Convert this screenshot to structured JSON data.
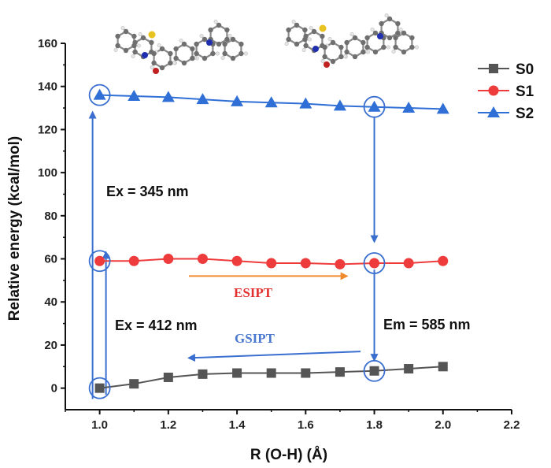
{
  "chart_data": {
    "type": "line",
    "title": "",
    "xlabel": "R (O-H) (Å)",
    "ylabel": "Relative energy (kcal/mol)",
    "xlim": [
      0.9,
      2.2
    ],
    "ylim": [
      -10,
      160
    ],
    "x_ticks": [
      1.0,
      1.2,
      1.4,
      1.6,
      1.8,
      2.0,
      2.2
    ],
    "x_tick_labels": [
      "1.0",
      "1.2",
      "1.4",
      "1.6",
      "1.8",
      "2.0",
      "2.2"
    ],
    "y_ticks": [
      0,
      20,
      40,
      60,
      80,
      100,
      120,
      140,
      160
    ],
    "y_tick_labels": [
      "0",
      "20",
      "40",
      "60",
      "80",
      "100",
      "120",
      "140",
      "160"
    ],
    "legend_position": "top-right",
    "series": [
      {
        "name": "S0",
        "color": "#555555",
        "marker": "square",
        "x": [
          1.0,
          1.1,
          1.2,
          1.3,
          1.4,
          1.5,
          1.6,
          1.7,
          1.8,
          1.9,
          2.0
        ],
        "values": [
          0,
          2,
          5,
          6.5,
          7,
          7,
          7,
          7.5,
          8,
          9,
          10
        ]
      },
      {
        "name": "S1",
        "color": "#ee3b3b",
        "marker": "circle",
        "x": [
          1.0,
          1.1,
          1.2,
          1.3,
          1.4,
          1.5,
          1.6,
          1.7,
          1.8,
          1.9,
          2.0
        ],
        "values": [
          59,
          59,
          60,
          60,
          59,
          58,
          58,
          57.5,
          58,
          58,
          59
        ]
      },
      {
        "name": "S2",
        "color": "#2f6fd6",
        "marker": "triangle",
        "x": [
          1.0,
          1.1,
          1.2,
          1.3,
          1.4,
          1.5,
          1.6,
          1.7,
          1.8,
          1.9,
          2.0
        ],
        "values": [
          136,
          135.5,
          135,
          134,
          133,
          132.5,
          132,
          131,
          130.5,
          130,
          129.5
        ]
      }
    ],
    "annotations": {
      "ex345": "Ex = 345 nm",
      "ex412": "Ex = 412 nm",
      "em585": "Em = 585 nm",
      "esipt": "ESIPT",
      "gsipt": "GSIPT"
    },
    "highlight_points": [
      {
        "x": 1.0,
        "y": 0
      },
      {
        "x": 1.0,
        "y": 59
      },
      {
        "x": 1.0,
        "y": 136
      },
      {
        "x": 1.8,
        "y": 58
      },
      {
        "x": 1.8,
        "y": 130.5
      },
      {
        "x": 1.8,
        "y": 8
      }
    ],
    "annotation_colors": {
      "arrow_blue": "#3a6fd0",
      "arrow_orange": "#f08a2c",
      "esipt_text": "#e2302f",
      "gsipt_text": "#4a78cf"
    }
  }
}
